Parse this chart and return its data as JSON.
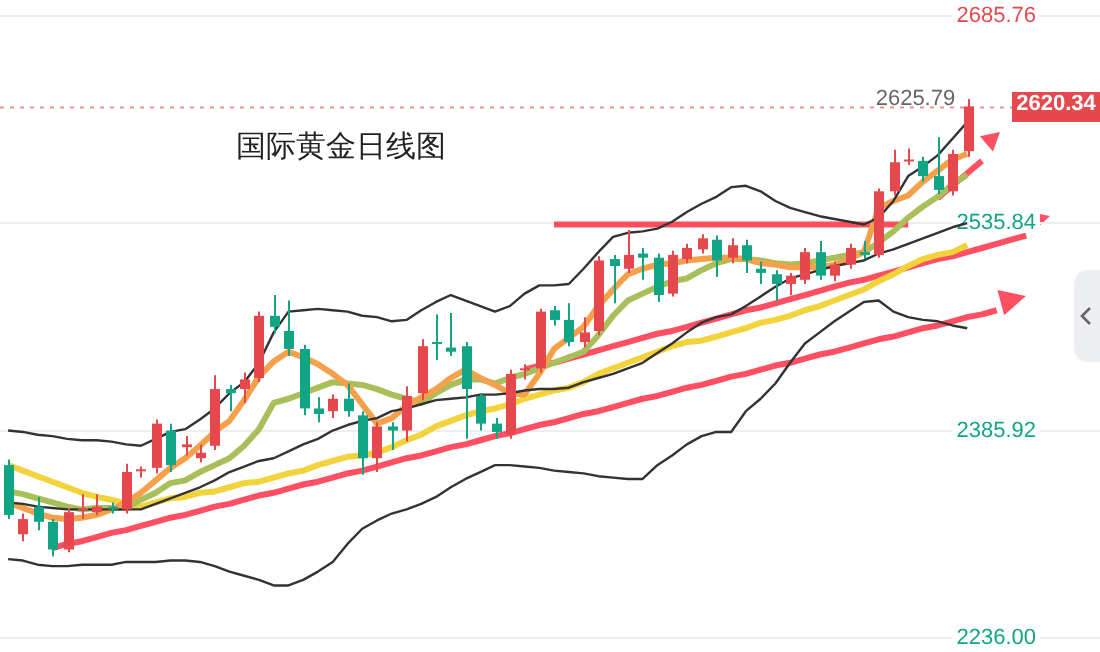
{
  "chart_data": {
    "type": "candlestick",
    "title": "国际黄金日线图",
    "categories": [
      null,
      null,
      null,
      null,
      null,
      null,
      null,
      null,
      null,
      null,
      null,
      null,
      null,
      null,
      null,
      null,
      null,
      null,
      null,
      null,
      null,
      null,
      null,
      null,
      null,
      null,
      null,
      null,
      null,
      null,
      null,
      null,
      null,
      null,
      null,
      null,
      null,
      null,
      null,
      null,
      null,
      null,
      null,
      null,
      null,
      null,
      null,
      null,
      null,
      null,
      null,
      null,
      null,
      null,
      null,
      null,
      null,
      null,
      null,
      null,
      null,
      null,
      null,
      null,
      null,
      null,
      null,
      null,
      null,
      null,
      null,
      null
    ],
    "ohlc": [
      [
        2361,
        2365,
        2322,
        2325
      ],
      [
        2311,
        2326,
        2306,
        2322
      ],
      [
        2331,
        2338,
        2314,
        2320
      ],
      [
        2320,
        2322,
        2295,
        2300
      ],
      [
        2300,
        2330,
        2298,
        2327
      ],
      [
        2329,
        2340,
        2322,
        2330
      ],
      [
        2327,
        2340,
        2325,
        2331
      ],
      [
        2331,
        2334,
        2326,
        2329
      ],
      [
        2329,
        2362,
        2326,
        2356
      ],
      [
        2357,
        2360,
        2352,
        2358
      ],
      [
        2359,
        2394,
        2355,
        2391
      ],
      [
        2386,
        2391,
        2356,
        2361
      ],
      [
        2374,
        2382,
        2368,
        2376
      ],
      [
        2366,
        2376,
        2363,
        2370
      ],
      [
        2375,
        2426,
        2372,
        2416
      ],
      [
        2416,
        2419,
        2400,
        2413
      ],
      [
        2416,
        2428,
        2406,
        2423
      ],
      [
        2424,
        2472,
        2421,
        2469
      ],
      [
        2469,
        2484,
        2456,
        2461
      ],
      [
        2458,
        2480,
        2440,
        2445
      ],
      [
        2445,
        2448,
        2397,
        2402
      ],
      [
        2402,
        2410,
        2392,
        2398
      ],
      [
        2400,
        2412,
        2395,
        2409
      ],
      [
        2409,
        2420,
        2396,
        2400
      ],
      [
        2397,
        2400,
        2354,
        2366
      ],
      [
        2366,
        2392,
        2356,
        2389
      ],
      [
        2389,
        2392,
        2372,
        2386
      ],
      [
        2386,
        2418,
        2378,
        2411
      ],
      [
        2413,
        2452,
        2408,
        2447
      ],
      [
        2450,
        2470,
        2437,
        2449
      ],
      [
        2446,
        2471,
        2440,
        2443
      ],
      [
        2447,
        2450,
        2380,
        2416
      ],
      [
        2411,
        2413,
        2386,
        2391
      ],
      [
        2391,
        2395,
        2380,
        2385
      ],
      [
        2383,
        2430,
        2380,
        2427
      ],
      [
        2430,
        2434,
        2423,
        2431
      ],
      [
        2431,
        2474,
        2428,
        2472
      ],
      [
        2473,
        2476,
        2462,
        2466
      ],
      [
        2466,
        2478,
        2447,
        2450
      ],
      [
        2450,
        2468,
        2446,
        2457
      ],
      [
        2458,
        2512,
        2455,
        2509
      ],
      [
        2510,
        2513,
        2478,
        2505
      ],
      [
        2503,
        2531,
        2500,
        2513
      ],
      [
        2514,
        2518,
        2495,
        2511
      ],
      [
        2511,
        2514,
        2479,
        2484
      ],
      [
        2485,
        2516,
        2483,
        2513
      ],
      [
        2510,
        2521,
        2507,
        2518
      ],
      [
        2517,
        2528,
        2514,
        2525
      ],
      [
        2524,
        2527,
        2497,
        2509
      ],
      [
        2511,
        2525,
        2507,
        2520
      ],
      [
        2520,
        2524,
        2500,
        2509
      ],
      [
        2503,
        2508,
        2492,
        2500
      ],
      [
        2499,
        2502,
        2480,
        2492
      ],
      [
        2492,
        2500,
        2484,
        2498
      ],
      [
        2495,
        2518,
        2492,
        2515
      ],
      [
        2515,
        2523,
        2495,
        2498
      ],
      [
        2498,
        2508,
        2494,
        2506
      ],
      [
        2506,
        2521,
        2503,
        2518
      ],
      [
        2515,
        2523,
        2510,
        2513
      ],
      [
        2513,
        2561,
        2511,
        2559
      ],
      [
        2559,
        2589,
        2556,
        2580
      ],
      [
        2581,
        2590,
        2578,
        2582
      ],
      [
        2581,
        2584,
        2566,
        2570
      ],
      [
        2570,
        2598,
        2557,
        2560
      ],
      [
        2559,
        2589,
        2556,
        2586
      ],
      [
        2588,
        2625.79,
        2584,
        2620.34
      ],
      null,
      null,
      null,
      null,
      null,
      null
    ],
    "colors": [
      "#12a585",
      "#e5484d",
      "#12a585",
      "#12a585",
      "#e5484d",
      "#e5484d",
      "#e5484d",
      "#12a585",
      "#e5484d",
      "#e5484d",
      "#e5484d",
      "#12a585",
      "#e5484d",
      "#e5484d",
      "#e5484d",
      "#12a585",
      "#e5484d",
      "#e5484d",
      "#12a585",
      "#12a585",
      "#12a585",
      "#12a585",
      "#e5484d",
      "#12a585",
      "#12a585",
      "#e5484d",
      "#12a585",
      "#e5484d",
      "#e5484d",
      "#12a585",
      "#12a585",
      "#12a585",
      "#12a585",
      "#12a585",
      "#e5484d",
      "#e5484d",
      "#e5484d",
      "#12a585",
      "#12a585",
      "#e5484d",
      "#e5484d",
      "#12a585",
      "#e5484d",
      "#12a585",
      "#12a585",
      "#e5484d",
      "#e5484d",
      "#e5484d",
      "#12a585",
      "#e5484d",
      "#12a585",
      "#12a585",
      "#12a585",
      "#e5484d",
      "#e5484d",
      "#12a585",
      "#e5484d",
      "#e5484d",
      "#12a585",
      "#e5484d",
      "#e5484d",
      "#e5484d",
      "#12a585",
      "#12a585",
      "#e5484d",
      "#e5484d",
      null,
      null,
      null,
      null,
      null,
      null
    ],
    "series": [
      {
        "type": "line",
        "color": "#333333",
        "values": [
          2386,
          2385,
          2383,
          2382,
          2380,
          2379,
          2379,
          2378,
          2376,
          2375,
          2380,
          2385,
          2387,
          2394,
          2402,
          2413,
          2421,
          2435,
          2457,
          2472,
          2473,
          2474,
          2473,
          2472,
          2469,
          2468,
          2465,
          2466,
          2473,
          2479,
          2484,
          2480,
          2476,
          2472,
          2476,
          2485,
          2491,
          2491,
          2492,
          2503,
          2515,
          2526,
          2529,
          2530,
          2532,
          2537,
          2544,
          2550,
          2555,
          2562,
          2563,
          2559,
          2552,
          2547,
          2544,
          2541,
          2539,
          2537,
          2535,
          2540,
          2552,
          2570,
          2577,
          2585,
          2597,
          2609,
          null,
          null,
          null,
          null,
          null,
          null
        ]
      },
      {
        "type": "line",
        "color": "#333333",
        "values": [
          2334,
          2333,
          2331,
          2330,
          2329,
          2329,
          2329,
          2329,
          2329,
          2329,
          2333,
          2337,
          2341,
          2345,
          2350,
          2356,
          2360,
          2364,
          2366,
          2371,
          2376,
          2380,
          2386,
          2390,
          2393,
          2395,
          2400,
          2402,
          2405,
          2408,
          2409,
          2410,
          2412,
          2412,
          2413,
          2415,
          2416,
          2416,
          2417,
          2421,
          2424,
          2427,
          2431,
          2435,
          2442,
          2449,
          2457,
          2464,
          2468,
          2470,
          2476,
          2483,
          2490,
          2496,
          2499,
          2502,
          2505,
          2507,
          2509,
          2514,
          2517,
          2521,
          2525,
          2529,
          2533,
          2536,
          null,
          null,
          null,
          null,
          null,
          null
        ]
      },
      {
        "type": "line",
        "color": "#333333",
        "values": [
          2293,
          2292,
          2289,
          2288,
          2288,
          2289,
          2289,
          2289,
          2291,
          2291,
          2291,
          2292,
          2292,
          2291,
          2288,
          2284,
          2281,
          2278,
          2274,
          2274,
          2278,
          2284,
          2291,
          2304,
          2315,
          2321,
          2326,
          2329,
          2333,
          2338,
          2345,
          2351,
          2356,
          2361,
          2361,
          2360,
          2359,
          2357,
          2356,
          2355,
          2353,
          2352,
          2351,
          2351,
          2361,
          2368,
          2376,
          2382,
          2385,
          2385,
          2400,
          2409,
          2420,
          2435,
          2449,
          2457,
          2465,
          2472,
          2479,
          2480,
          2472,
          2468,
          2466,
          2465,
          2462,
          2460,
          null,
          null,
          null,
          null,
          null,
          null
        ]
      },
      {
        "type": "line",
        "color": "#f5a04a",
        "values": [
          2334,
          2330,
          2326,
          2323,
          2322,
          2323,
          2325,
          2329,
          2334,
          2341,
          2350,
          2359,
          2366,
          2375,
          2385,
          2393,
          2408,
          2425,
          2436,
          2443,
          2439,
          2434,
          2427,
          2419,
          2405,
          2391,
          2395,
          2404,
          2410,
          2416,
          2424,
          2430,
          2424,
          2419,
          2413,
          2412,
          2427,
          2445,
          2453,
          2461,
          2476,
          2488,
          2499,
          2503,
          2506,
          2507,
          2509,
          2510,
          2511,
          2511,
          2510,
          2507,
          2506,
          2504,
          2504,
          2504,
          2506,
          2510,
          2515,
          2547,
          2552,
          2556,
          2566,
          2574,
          2582,
          2586,
          null,
          null,
          null,
          null,
          null,
          null
        ]
      },
      {
        "type": "line",
        "color": "#a8bf5a",
        "values": [
          2342,
          2340,
          2337,
          2334,
          2331,
          2329,
          2330,
          2330,
          2330,
          2336,
          2341,
          2348,
          2350,
          2356,
          2361,
          2366,
          2375,
          2387,
          2406,
          2409,
          2413,
          2417,
          2421,
          2420,
          2419,
          2416,
          2412,
          2409,
          2406,
          2413,
          2419,
          2423,
          2423,
          2420,
          2424,
          2427,
          2431,
          2435,
          2439,
          2443,
          2455,
          2469,
          2480,
          2485,
          2490,
          2494,
          2496,
          2502,
          2507,
          2510,
          2510,
          2509,
          2507,
          2506,
          2507,
          2509,
          2511,
          2513,
          2515,
          2522,
          2530,
          2540,
          2548,
          2555,
          2564,
          2571,
          null,
          null,
          null,
          null,
          null,
          null
        ]
      },
      {
        "type": "line",
        "color": "#f2d33c",
        "values": [
          2361,
          2357,
          2353,
          2349,
          2345,
          2341,
          2338,
          2336,
          2333,
          2331,
          2334,
          2337,
          2338,
          2341,
          2342,
          2345,
          2348,
          2349,
          2352,
          2355,
          2357,
          2361,
          2364,
          2367,
          2368,
          2370,
          2374,
          2379,
          2383,
          2389,
          2393,
          2397,
          2400,
          2402,
          2405,
          2409,
          2412,
          2415,
          2417,
          2421,
          2427,
          2431,
          2435,
          2439,
          2443,
          2447,
          2450,
          2451,
          2454,
          2457,
          2460,
          2464,
          2466,
          2469,
          2473,
          2476,
          2480,
          2484,
          2488,
          2494,
          2499,
          2505,
          2510,
          2513,
          2515,
          2520,
          null,
          null,
          null,
          null,
          null,
          null
        ]
      },
      {
        "type": "line",
        "color": "#ff4d5e",
        "values": [
          null,
          null,
          null,
          null,
          null,
          null,
          null,
          null,
          null,
          null,
          null,
          null,
          null,
          null,
          null,
          null,
          null,
          null,
          null,
          null,
          null,
          null,
          null,
          null,
          null,
          null,
          null,
          null,
          null,
          null,
          null,
          null,
          null,
          null,
          null,
          null,
          null,
          2535,
          2535,
          2535,
          2535,
          2535,
          2535,
          2535,
          2535,
          2535,
          2535,
          2535,
          2535,
          2535,
          2535,
          2535,
          2535,
          2535,
          2535,
          2535,
          2535,
          2535,
          2535,
          2535,
          2535,
          2535,
          null,
          null,
          null,
          null,
          null,
          null,
          null,
          null,
          null,
          null
        ]
      },
      {
        "type": "line",
        "color": "#ff4f62",
        "values": [
          null,
          null,
          null,
          2301,
          2304,
          2306,
          2309,
          2312,
          2314,
          2317,
          2320,
          2323,
          2325,
          2328,
          2331,
          2333,
          2336,
          2339,
          2341,
          2344,
          2347,
          2349,
          2352,
          2355,
          2357,
          2360,
          2363,
          2366,
          2368,
          2371,
          2374,
          2376,
          2379,
          2382,
          2384,
          2387,
          2390,
          2392,
          2395,
          2398,
          2400,
          2403,
          2406,
          2409,
          2411,
          2414,
          2417,
          2419,
          2422,
          2425,
          2427,
          2430,
          2433,
          2435,
          2438,
          2441,
          2443,
          2446,
          2449,
          2452,
          2454,
          2457,
          2460,
          2462,
          2465,
          2468,
          2470,
          2473,
          null,
          null,
          null,
          null
        ]
      },
      {
        "type": "line",
        "color": "#ff4f62",
        "values": [
          null,
          null,
          null,
          null,
          null,
          null,
          null,
          null,
          null,
          null,
          null,
          null,
          null,
          null,
          null,
          null,
          null,
          null,
          null,
          null,
          null,
          null,
          null,
          null,
          null,
          null,
          null,
          null,
          null,
          null,
          null,
          null,
          null,
          null,
          null,
          2430,
          2433,
          2435,
          2438,
          2441,
          2444,
          2447,
          2450,
          2453,
          2456,
          2458,
          2461,
          2464,
          2467,
          2470,
          2473,
          2475,
          2478,
          2481,
          2484,
          2487,
          2490,
          2493,
          2495,
          2498,
          2501,
          2504,
          2507,
          2510,
          2512,
          2515,
          2518,
          2521,
          2524,
          2527,
          null,
          null
        ]
      },
      {
        "type": "line",
        "color": "#ff4f62",
        "values": [
          null,
          null,
          null,
          null,
          null,
          null,
          null,
          null,
          null,
          null,
          null,
          null,
          null,
          null,
          null,
          null,
          null,
          null,
          null,
          null,
          null,
          null,
          null,
          null,
          null,
          null,
          null,
          null,
          null,
          null,
          null,
          null,
          null,
          null,
          null,
          null,
          null,
          null,
          null,
          null,
          null,
          null,
          null,
          null,
          null,
          null,
          null,
          null,
          null,
          null,
          null,
          null,
          null,
          null,
          null,
          null,
          null,
          null,
          null,
          null,
          null,
          null,
          null,
          2554,
          2563,
          2572,
          2581,
          null,
          null,
          null,
          null,
          null
        ]
      }
    ],
    "ylim": [
      2236,
      2685.76
    ],
    "yticks": [
      {
        "value": 2236,
        "label": "2236.00"
      },
      2385.92,
      2535.84,
      2685.76
    ],
    "grid": "y",
    "tick_labels": "y",
    "ref_lines": [
      {
        "axis": "y",
        "value": 2620.34,
        "label": "2620.34",
        "color": "#e5484d",
        "line_style": "dotted"
      }
    ],
    "annotations": [
      {
        "text": "2625.79",
        "y": 2625.79
      }
    ]
  }
}
